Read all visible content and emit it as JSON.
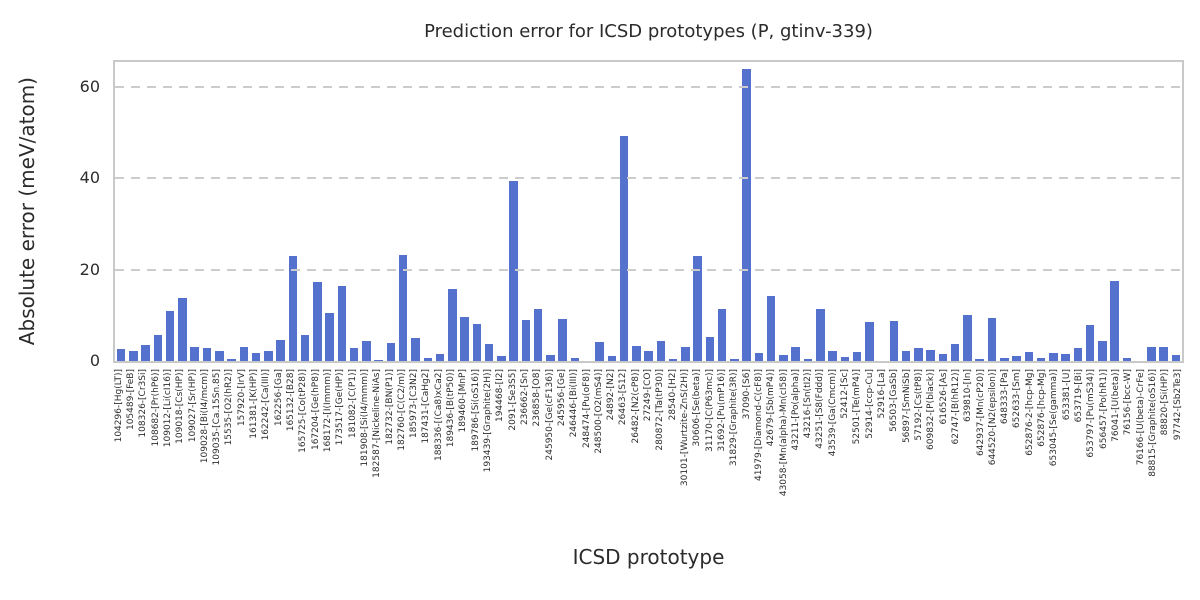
{
  "chart_data": {
    "type": "bar",
    "title": "Prediction error for ICSD prototypes (P, gtinv-339)",
    "xlabel": "ICSD prototype",
    "ylabel": "Absolute error (meV/atom)",
    "ylim": [
      0,
      65.5
    ],
    "yticks": [
      0,
      20,
      40,
      60
    ],
    "grid": true,
    "legend": "none",
    "bar_color": "#5471cd",
    "grid_color": "#cccccc",
    "spine_color": "#c9c9c9",
    "text_color": "#2b2b2b",
    "categories": [
      "104296-[Hg(LT)]",
      "105489-[FeB]",
      "108326-[Cr3Si]",
      "108682-[Pr(hP6)]",
      "109012-[Li(cI16)]",
      "109018-[Cs(HP)]",
      "109027-[Sr(HP)]",
      "109028-[Bi(I4/mcm)]",
      "109035-[Ca.15Sn.85]",
      "15535-[O2(hR2)]",
      "157920-[IrV]",
      "161381-[K(HP)]",
      "162242-[Ca(III)]",
      "162256-[Ga]",
      "165132-[B28]",
      "165725-[Co(tP28)]",
      "167204-[Ge(hP8)]",
      "168172-[I(Immm)]",
      "173517-[Ge(HP)]",
      "181082-[C(P1)]",
      "181908-[Si(I4/mmm)]",
      "182587-[Nickeline-NiAs]",
      "182732-[BN(P1)]",
      "182760-[C(C2/m)]",
      "185973-[C3N2]",
      "187431-[CaHg2]",
      "188336-[(Ca8)xCa2]",
      "189436-[B(tP50)]",
      "189460-[MnP]",
      "189786-[Si(oS16)]",
      "193439-[Graphite(2H)]",
      "194468-[I2]",
      "2091-[Se3S5]",
      "236662-[Sn]",
      "236858-[O8]",
      "245950-[Ge(cF136)]",
      "245956-[Ge]",
      "246446-[Bi(III)]",
      "248474-[Pu(oF8)]",
      "248500-[O2(mS4)]",
      "24892-[N2]",
      "26463-[S12]",
      "26482-[N2(cP8)]",
      "27249-[CO]",
      "280872-[Ta(tP30)]",
      "28540-[H2]",
      "30101-[Wurtzite-ZnS(2H)]",
      "30606-[Se(beta)]",
      "31170-[C(P63mc)]",
      "31692-[Pu(mP16)]",
      "31829-[Graphite(3R)]",
      "37090-[S6]",
      "41979-[Diamond-C(cF8)]",
      "42679-[Sb(mP4)]",
      "43058-[Mn(alpha)-Mn(cI58)]",
      "43211-[Po(alpha)]",
      "43216-[Sn(tI2)]",
      "43251-[S8(Fddd)]",
      "43539-[Ga(Cmcm)]",
      "52412-[Sc]",
      "52501-[Te(mP4)]",
      "52914-[ccp-Cu]",
      "52916-[La]",
      "56503-[GaSb]",
      "56897-[SmNiSb]",
      "57192-[Cs(tP8)]",
      "609832-[P(black)]",
      "616526-[As]",
      "62747-[B(hR12)]",
      "639810-[In]",
      "642937-[Mn(cP20)]",
      "644520-[N2(epsilon)]",
      "648333-[Pa]",
      "652633-[Sm]",
      "652876-2-[hcp-Mg]",
      "652876-[hcp-Mg]",
      "653045-[Se(gamma)]",
      "653381-[U]",
      "653719-[Bi]",
      "653797-[Pu(mS34)]",
      "656457-[Po(hR1)]",
      "76041-[U(beta)]",
      "76156-[bcc-W]",
      "76166-[U(beta)-CrFe]",
      "88815-[Graphite(oS16)]",
      "88820-[Si(HP)]",
      "97742-[Sb2Te3]"
    ],
    "values": [
      2.7,
      2.1,
      3.6,
      5.8,
      10.9,
      13.7,
      3.1,
      2.9,
      2.3,
      0.4,
      3.0,
      1.8,
      2.2,
      4.7,
      23.0,
      5.8,
      17.2,
      10.6,
      16.4,
      2.8,
      4.4,
      0.2,
      4.0,
      23.2,
      5.0,
      0.7,
      1.5,
      15.7,
      9.6,
      8.0,
      3.8,
      1.2,
      39.4,
      9.0,
      11.4,
      1.4,
      9.2,
      0.7,
      0.1,
      4.1,
      1.0,
      49.2,
      3.2,
      2.2,
      4.3,
      0.5,
      3.0,
      23.0,
      5.2,
      11.4,
      0.5,
      64.0,
      1.8,
      14.3,
      1.3,
      3.0,
      0.4,
      11.4,
      2.3,
      0.9,
      2.0,
      8.5,
      0.1,
      8.7,
      2.2,
      2.9,
      2.5,
      1.6,
      3.8,
      10.0,
      0.4,
      9.4,
      0.7,
      1.1,
      2.0,
      0.6,
      1.8,
      1.5,
      2.8,
      7.8,
      4.3,
      17.5,
      0.7,
      0.1,
      3.1,
      3.1,
      1.3
    ]
  }
}
